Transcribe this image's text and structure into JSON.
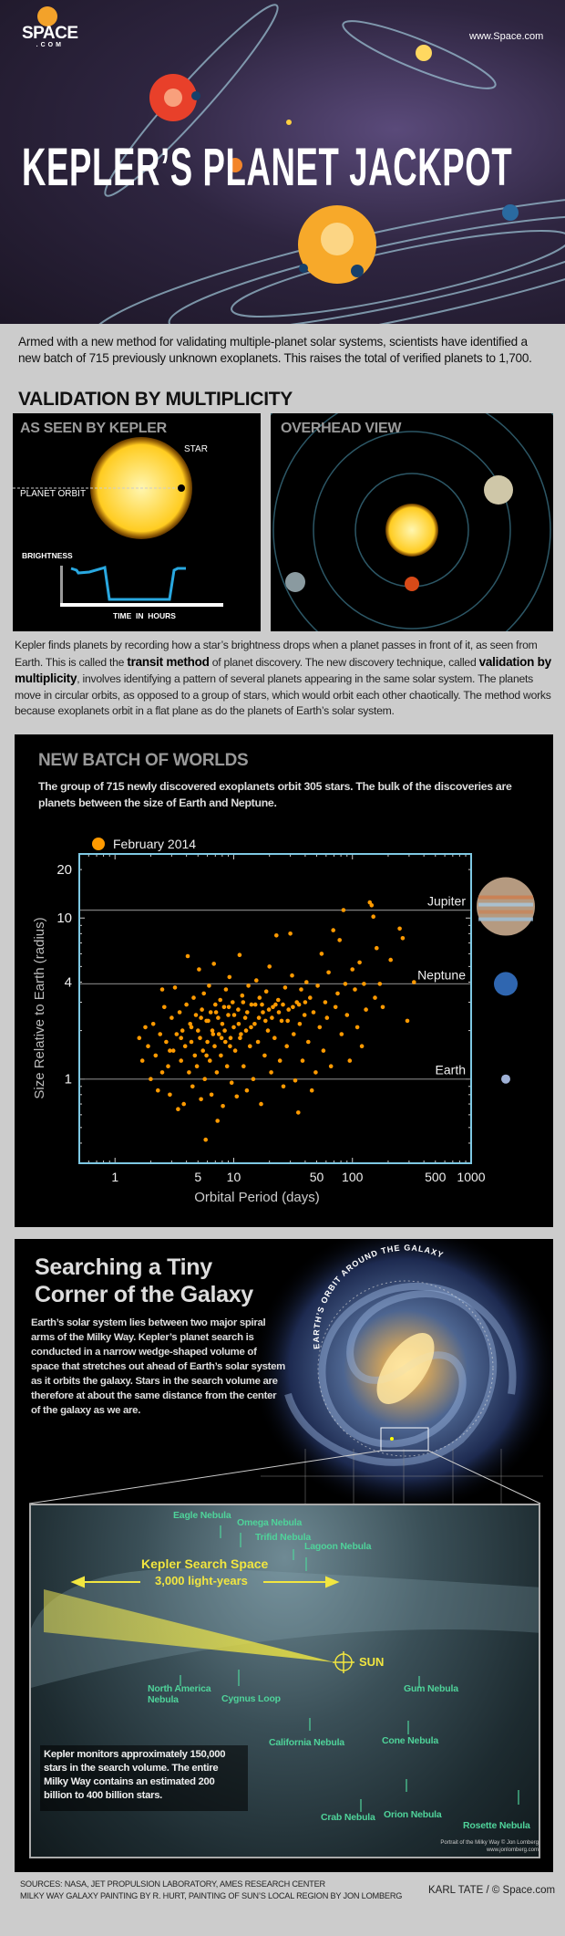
{
  "header": {
    "title": "KEPLER’S PLANET JACKPOT",
    "logo": {
      "main": "SPACE",
      "sub": ".COM"
    },
    "site_url": "www.Space.com"
  },
  "intro": "Armed with a new method for validating multiple-planet solar systems, scientists have identified a new batch of 715 previously unknown exoplanets. This raises the total of verified planets to 1,700.",
  "validation": {
    "heading": "VALIDATION BY MULTIPLICITY",
    "kepler_panel": {
      "title": "AS SEEN BY KEPLER",
      "star_label": "STAR",
      "orbit_label": "PLANET ORBIT",
      "brightness_label": "BRIGHTNESS",
      "time_label": "TIME  IN  HOURS"
    },
    "overhead_panel": {
      "title": "OVERHEAD VIEW"
    },
    "description": [
      {
        "text": "Kepler finds planets by recording how a star’s brightness drops when a planet passes in front of it, as seen from Earth. This is called the ",
        "bold": false
      },
      {
        "text": "transit method",
        "bold": true
      },
      {
        "text": " of planet discovery. The new discovery technique, called ",
        "bold": false
      },
      {
        "text": "validation by multiplicity",
        "bold": true
      },
      {
        "text": ", involves identifying a pattern of several planets appearing in the same solar system. The planets move in circular orbits, as opposed to a group of stars, which would orbit each other chaotically. The method works because exoplanets orbit in a flat plane as do the planets of Earth’s solar system.",
        "bold": false
      }
    ]
  },
  "batch": {
    "title": "NEW BATCH OF WORLDS",
    "body": "The group of 715 newly discovered exoplanets orbit 305 stars. The bulk of the discoveries are planets between the size of Earth and Neptune."
  },
  "chart_data": {
    "type": "scatter",
    "xlabel": "Orbital Period (days)",
    "ylabel": "Size Relative to Earth (radius)",
    "x_scale": "log",
    "y_scale": "log",
    "xlim": [
      0.5,
      1000
    ],
    "ylim": [
      0.3,
      25
    ],
    "x_ticks": [
      1,
      5,
      10,
      50,
      100,
      500,
      1000
    ],
    "y_ticks": [
      1,
      4,
      10,
      20
    ],
    "grid": false,
    "legend_position": "top-left",
    "frame_color": "#7ec8e3",
    "reference_lines": [
      {
        "label": "Jupiter",
        "y": 11.2
      },
      {
        "label": "Neptune",
        "y": 3.9
      },
      {
        "label": "Earth",
        "y": 1
      }
    ],
    "series": [
      {
        "name": "February 2014",
        "color": "#ff9a00",
        "points": [
          [
            1.6,
            1.8
          ],
          [
            1.7,
            1.3
          ],
          [
            1.8,
            2.1
          ],
          [
            1.9,
            1.6
          ],
          [
            2.0,
            1.0
          ],
          [
            2.1,
            2.2
          ],
          [
            2.2,
            1.4
          ],
          [
            2.3,
            0.85
          ],
          [
            2.4,
            1.9
          ],
          [
            2.5,
            3.6
          ],
          [
            2.5,
            1.1
          ],
          [
            2.6,
            2.8
          ],
          [
            2.7,
            1.7
          ],
          [
            2.8,
            1.2
          ],
          [
            2.9,
            0.8
          ],
          [
            3.0,
            2.4
          ],
          [
            3.1,
            1.5
          ],
          [
            3.2,
            3.7
          ],
          [
            3.3,
            1.9
          ],
          [
            3.4,
            0.65
          ],
          [
            3.5,
            2.6
          ],
          [
            3.6,
            1.3
          ],
          [
            3.7,
            2.0
          ],
          [
            3.8,
            0.7
          ],
          [
            3.9,
            1.6
          ],
          [
            4.0,
            2.9
          ],
          [
            4.1,
            5.8
          ],
          [
            4.2,
            1.1
          ],
          [
            4.3,
            2.2
          ],
          [
            4.4,
            1.7
          ],
          [
            4.5,
            0.9
          ],
          [
            4.6,
            3.2
          ],
          [
            4.7,
            1.4
          ],
          [
            4.8,
            2.5
          ],
          [
            4.9,
            1.2
          ],
          [
            5.0,
            2.0
          ],
          [
            5.1,
            4.8
          ],
          [
            5.2,
            1.8
          ],
          [
            5.3,
            0.75
          ],
          [
            5.4,
            2.7
          ],
          [
            5.5,
            1.5
          ],
          [
            5.6,
            3.4
          ],
          [
            5.7,
            1.0
          ],
          [
            5.8,
            0.42
          ],
          [
            5.9,
            2.3
          ],
          [
            6.0,
            1.7
          ],
          [
            6.2,
            3.8
          ],
          [
            6.3,
            1.3
          ],
          [
            6.4,
            2.6
          ],
          [
            6.5,
            0.8
          ],
          [
            6.6,
            2.0
          ],
          [
            6.8,
            5.2
          ],
          [
            6.9,
            1.6
          ],
          [
            7.0,
            2.9
          ],
          [
            7.2,
            1.1
          ],
          [
            7.3,
            0.55
          ],
          [
            7.4,
            2.4
          ],
          [
            7.5,
            1.9
          ],
          [
            7.7,
            3.1
          ],
          [
            7.8,
            1.4
          ],
          [
            8.0,
            2.2
          ],
          [
            8.1,
            0.68
          ],
          [
            8.3,
            2.8
          ],
          [
            8.5,
            1.7
          ],
          [
            8.6,
            3.6
          ],
          [
            8.8,
            1.2
          ],
          [
            9.0,
            2.5
          ],
          [
            9.2,
            4.3
          ],
          [
            9.4,
            1.8
          ],
          [
            9.6,
            0.95
          ],
          [
            9.8,
            3.0
          ],
          [
            10,
            2.1
          ],
          [
            10.3,
            1.5
          ],
          [
            10.6,
            0.78
          ],
          [
            10.9,
            2.7
          ],
          [
            11.2,
            5.9
          ],
          [
            11.5,
            1.9
          ],
          [
            11.8,
            3.3
          ],
          [
            12.1,
            1.2
          ],
          [
            12.5,
            2.4
          ],
          [
            12.9,
            0.85
          ],
          [
            13.3,
            3.8
          ],
          [
            13.7,
            1.6
          ],
          [
            14.1,
            2.9
          ],
          [
            14.6,
            1.0
          ],
          [
            15.0,
            2.2
          ],
          [
            15.5,
            4.1
          ],
          [
            16.0,
            1.7
          ],
          [
            16.5,
            3.2
          ],
          [
            17.0,
            0.7
          ],
          [
            17.6,
            2.6
          ],
          [
            18.2,
            1.4
          ],
          [
            18.8,
            3.5
          ],
          [
            19.4,
            2.0
          ],
          [
            20.0,
            5.0
          ],
          [
            20.7,
            1.1
          ],
          [
            21.4,
            2.8
          ],
          [
            22.1,
            1.8
          ],
          [
            22.9,
            7.8
          ],
          [
            23.7,
            3.1
          ],
          [
            24.5,
            1.3
          ],
          [
            25.3,
            2.3
          ],
          [
            26.2,
            0.9
          ],
          [
            27.1,
            3.7
          ],
          [
            28.0,
            1.6
          ],
          [
            29.0,
            2.7
          ],
          [
            30,
            8.0
          ],
          [
            31,
            4.4
          ],
          [
            32,
            1.9
          ],
          [
            33,
            0.98
          ],
          [
            34,
            3.0
          ],
          [
            35,
            0.62
          ],
          [
            36,
            2.2
          ],
          [
            37,
            3.6
          ],
          [
            38,
            1.3
          ],
          [
            39.5,
            2.5
          ],
          [
            41,
            4.0
          ],
          [
            42.5,
            1.7
          ],
          [
            44,
            3.2
          ],
          [
            45.5,
            0.85
          ],
          [
            47,
            2.6
          ],
          [
            49,
            1.1
          ],
          [
            51,
            3.8
          ],
          [
            53,
            2.1
          ],
          [
            55,
            6.0
          ],
          [
            57,
            1.5
          ],
          [
            59,
            3.0
          ],
          [
            61,
            2.4
          ],
          [
            63,
            4.6
          ],
          [
            66,
            1.2
          ],
          [
            69,
            8.4
          ],
          [
            72,
            2.8
          ],
          [
            75,
            3.4
          ],
          [
            78,
            7.3
          ],
          [
            81,
            1.9
          ],
          [
            84,
            11.2
          ],
          [
            87,
            3.9
          ],
          [
            90,
            2.5
          ],
          [
            95,
            1.3
          ],
          [
            100,
            4.8
          ],
          [
            105,
            3.6
          ],
          [
            110,
            2.1
          ],
          [
            115,
            5.3
          ],
          [
            120,
            1.6
          ],
          [
            125,
            3.9
          ],
          [
            130,
            2.7
          ],
          [
            140,
            12.5
          ],
          [
            145,
            12.0
          ],
          [
            150,
            10.2
          ],
          [
            155,
            3.2
          ],
          [
            160,
            6.5
          ],
          [
            170,
            3.9
          ],
          [
            180,
            2.8
          ],
          [
            210,
            5.5
          ],
          [
            250,
            8.6
          ],
          [
            265,
            7.5
          ],
          [
            290,
            2.3
          ],
          [
            330,
            4.0
          ],
          [
            6.1,
            2.3
          ],
          [
            7.1,
            2.6
          ],
          [
            8.4,
            2.0
          ],
          [
            9.1,
            2.8
          ],
          [
            10.1,
            2.5
          ],
          [
            11.0,
            2.2
          ],
          [
            12.0,
            3.0
          ],
          [
            13.0,
            2.6
          ],
          [
            14.0,
            2.1
          ],
          [
            15.2,
            2.9
          ],
          [
            16.3,
            2.4
          ],
          [
            17.3,
            2.9
          ],
          [
            18.5,
            2.3
          ],
          [
            19.8,
            2.7
          ],
          [
            21.0,
            2.4
          ],
          [
            22.5,
            2.9
          ],
          [
            24.0,
            2.6
          ],
          [
            26.0,
            2.9
          ],
          [
            28.5,
            2.3
          ],
          [
            31.5,
            2.8
          ],
          [
            35.5,
            2.9
          ],
          [
            40.0,
            3.0
          ],
          [
            4.4,
            2.1
          ],
          [
            5.3,
            2.4
          ],
          [
            6.7,
            1.9
          ],
          [
            7.9,
            1.8
          ],
          [
            9.3,
            1.6
          ],
          [
            11.3,
            1.8
          ],
          [
            12.7,
            2.0
          ],
          [
            3.6,
            1.8
          ],
          [
            2.9,
            1.5
          ],
          [
            5.9,
            1.4
          ]
        ]
      }
    ]
  },
  "galaxy": {
    "title": "Searching a Tiny Corner of the Galaxy",
    "body": "Earth’s solar system lies between two major spiral arms of the Milky Way. Kepler’s planet search is conducted in a narrow wedge-shaped volume of space that stretches out ahead of Earth’s solar system as it orbits the galaxy. Stars in the search volume are therefore at about the same distance from the center of the galaxy as we are.",
    "orbit_label": "EARTH’S ORBIT AROUND THE GALAXY",
    "search_space": {
      "title": "Kepler Search Space",
      "distance": "3,000 light-years"
    },
    "sun_label": "SUN",
    "nebulae": [
      "Eagle Nebula",
      "Omega Nebula",
      "Trifid Nebula",
      "Lagoon Nebula",
      "North America Nebula",
      "Cygnus Loop",
      "Gum Nebula",
      "California Nebula",
      "Cone Nebula",
      "Crab Nebula",
      "Orion Nebula",
      "Rosette Nebula"
    ],
    "monitor_note": "Kepler monitors approximately 150,000 stars in the search volume. The entire Milky Way contains an estimated 200 billion to 400 billion stars.",
    "painting_credit": [
      "Portrait of the Milky Way © Jon Lomberg",
      "www.jonlomberg.com"
    ]
  },
  "footer": {
    "sources": "SOURCES: NASA, JET PROPULSION LABORATORY, AMES RESEARCH CENTER",
    "painting_credits": "MILKY WAY GALAXY PAINTING BY R. HURT, PAINTING OF SUN’S LOCAL REGION BY JON LOMBERG",
    "author": "KARL TATE / © Space.com"
  }
}
